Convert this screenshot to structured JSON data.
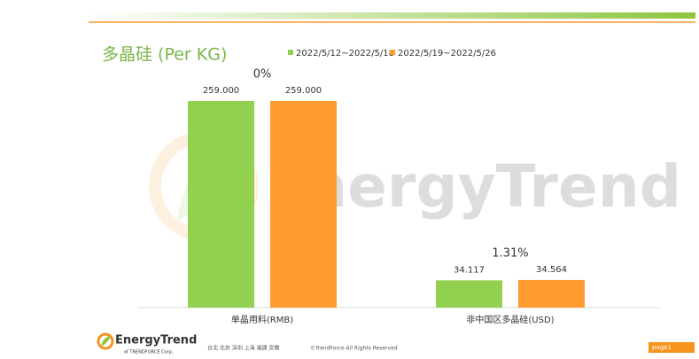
{
  "chart_data": {
    "type": "bar",
    "title": "多晶硅 (Per KG)",
    "categories": [
      "单晶用料(RMB)",
      "非中国区多晶硅(USD)"
    ],
    "series": [
      {
        "name": "2022/5/12~2022/5/18",
        "color": "#92d050",
        "values": [
          259.0,
          34.117
        ],
        "value_labels": [
          "259.000",
          "34.117"
        ]
      },
      {
        "name": "2022/5/19~2022/5/26",
        "color": "#ff9a2e",
        "values": [
          259.0,
          34.564
        ],
        "value_labels": [
          "259.000",
          "34.564"
        ]
      }
    ],
    "annotations": [
      "0%",
      "1.31%"
    ],
    "ylim": [
      0,
      260
    ]
  },
  "watermark": "EnergyTrend",
  "footer": {
    "logo": "EnergyTrend",
    "logo_sub": "of TRENDFORCE Corp.",
    "offices": "台北 北京 深圳 上海 福建 安徽",
    "copyright": "©TrendForce All Rights Reserved",
    "page": "page1"
  }
}
